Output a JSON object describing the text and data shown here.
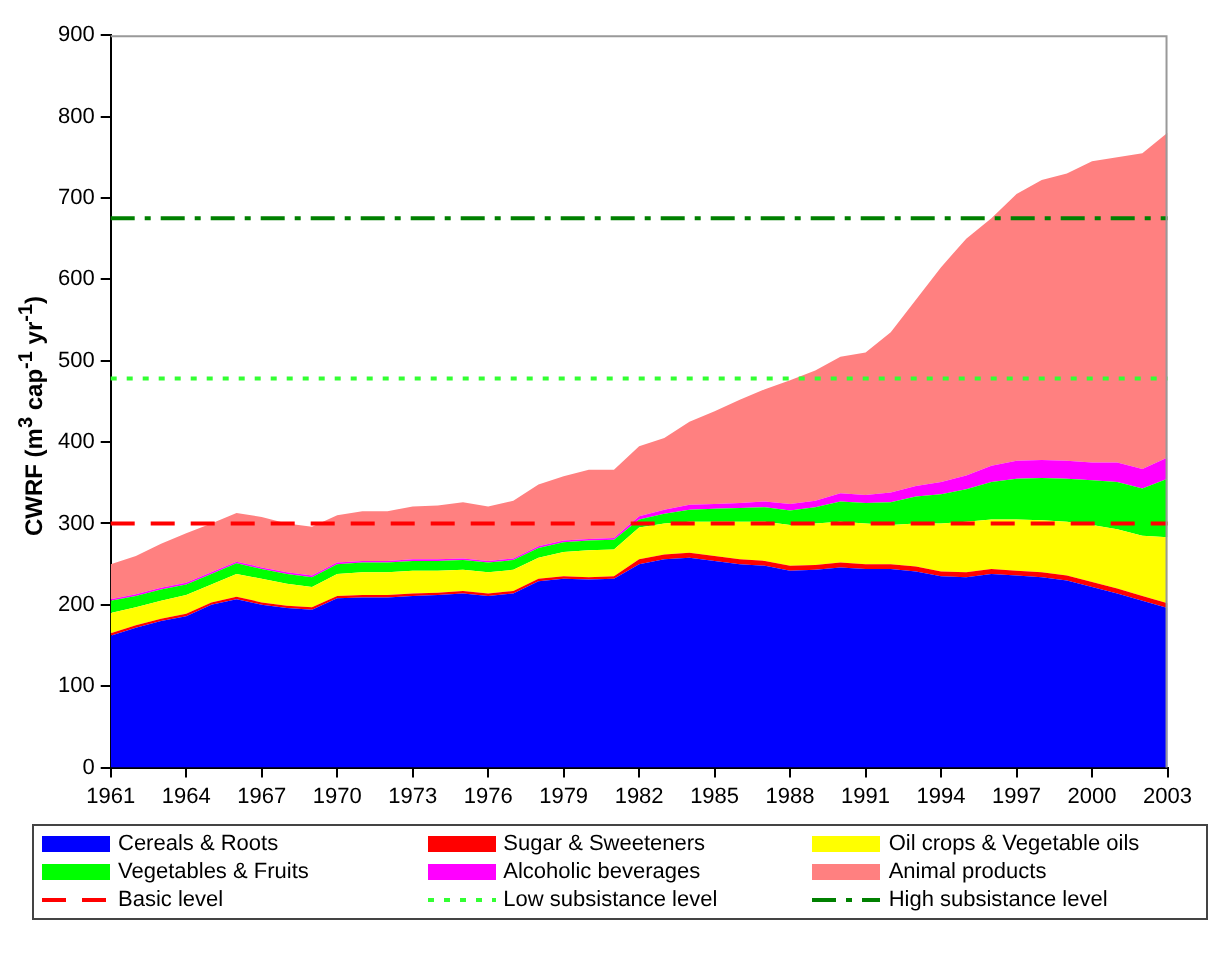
{
  "chart_data": {
    "type": "area",
    "stacked": true,
    "ylabel": "CWRF (m$^{3}$ cap$^{-1}$ yr$^{-1}$)",
    "x": [
      1961,
      1962,
      1963,
      1964,
      1965,
      1966,
      1967,
      1968,
      1969,
      1970,
      1971,
      1972,
      1973,
      1974,
      1975,
      1976,
      1977,
      1978,
      1979,
      1980,
      1981,
      1982,
      1983,
      1984,
      1985,
      1986,
      1987,
      1988,
      1989,
      1990,
      1991,
      1992,
      1993,
      1994,
      1995,
      1996,
      1997,
      1998,
      1999,
      2000,
      2001,
      2002,
      2003
    ],
    "xlim": [
      1961,
      2003
    ],
    "xticks": [
      1961,
      1964,
      1967,
      1970,
      1973,
      1976,
      1979,
      1982,
      1985,
      1988,
      1991,
      1994,
      1997,
      2000,
      2003
    ],
    "ylim": [
      0,
      900
    ],
    "yticks": [
      0,
      100,
      200,
      300,
      400,
      500,
      600,
      700,
      800,
      900
    ],
    "series": [
      {
        "name": "Cereals & Roots",
        "color": "#0000ff",
        "values": [
          162,
          172,
          180,
          186,
          200,
          207,
          200,
          196,
          194,
          208,
          209,
          209,
          211,
          212,
          214,
          211,
          214,
          229,
          232,
          231,
          232,
          250,
          256,
          258,
          254,
          250,
          248,
          242,
          243,
          246,
          244,
          244,
          241,
          235,
          234,
          238,
          236,
          234,
          230,
          222,
          214,
          205,
          196
        ]
      },
      {
        "name": "Sugar & Sweeteners",
        "color": "#ff0000",
        "values": [
          3,
          3,
          3,
          3,
          3,
          3,
          3,
          3,
          3,
          3,
          3,
          3,
          3,
          3,
          3,
          3,
          3,
          3,
          3,
          3,
          3,
          6,
          6,
          6,
          6,
          6,
          6,
          6,
          6,
          6,
          6,
          6,
          6,
          6,
          6,
          6,
          6,
          6,
          6,
          6,
          6,
          6,
          6
        ]
      },
      {
        "name": "Oil crops & Vegetable oils",
        "color": "#ffff00",
        "values": [
          25,
          22,
          22,
          23,
          22,
          28,
          29,
          27,
          25,
          27,
          28,
          28,
          28,
          27,
          26,
          26,
          26,
          26,
          30,
          33,
          33,
          39,
          38,
          38,
          42,
          46,
          48,
          50,
          51,
          50,
          50,
          48,
          53,
          59,
          62,
          61,
          63,
          64,
          66,
          70,
          73,
          74,
          81
        ]
      },
      {
        "name": "Vegetables & Fruits",
        "color": "#00ff00",
        "values": [
          15,
          14,
          14,
          13,
          13,
          13,
          12,
          12,
          12,
          12,
          12,
          12,
          12,
          12,
          12,
          12,
          12,
          12,
          12,
          12,
          12,
          10,
          12,
          15,
          16,
          17,
          18,
          18,
          20,
          25,
          25,
          28,
          33,
          36,
          40,
          46,
          50,
          52,
          53,
          55,
          58,
          58,
          72
        ]
      },
      {
        "name": "Alcoholic beverages",
        "color": "#ff00ff",
        "values": [
          2,
          2,
          2,
          2,
          2,
          2,
          2,
          2,
          2,
          2,
          2,
          2,
          2,
          2,
          2,
          2,
          2,
          2,
          2,
          2,
          2,
          4,
          5,
          6,
          6,
          6,
          7,
          8,
          8,
          10,
          10,
          12,
          13,
          15,
          17,
          20,
          22,
          22,
          22,
          22,
          24,
          24,
          26
        ]
      },
      {
        "name": "Animal products",
        "color": "#ff8080",
        "values": [
          43,
          47,
          54,
          61,
          60,
          60,
          62,
          60,
          60,
          58,
          61,
          61,
          65,
          66,
          69,
          67,
          71,
          76,
          79,
          85,
          84,
          86,
          88,
          102,
          114,
          127,
          138,
          152,
          160,
          168,
          175,
          197,
          229,
          264,
          291,
          304,
          328,
          344,
          353,
          370,
          375,
          388,
          399
        ]
      }
    ],
    "ref_lines": [
      {
        "axis": "y",
        "value": 300,
        "label": "Basic level",
        "color": "#ff0000",
        "line_style": "dashed"
      },
      {
        "axis": "y",
        "value": 478,
        "label": "Low subsistance level",
        "color": "#33ff33",
        "line_style": "dotted"
      },
      {
        "axis": "y",
        "value": 675,
        "label": "High subsistance level",
        "color": "#008000",
        "line_style": "dashdot"
      }
    ],
    "grid": false,
    "legend": "bottom"
  }
}
